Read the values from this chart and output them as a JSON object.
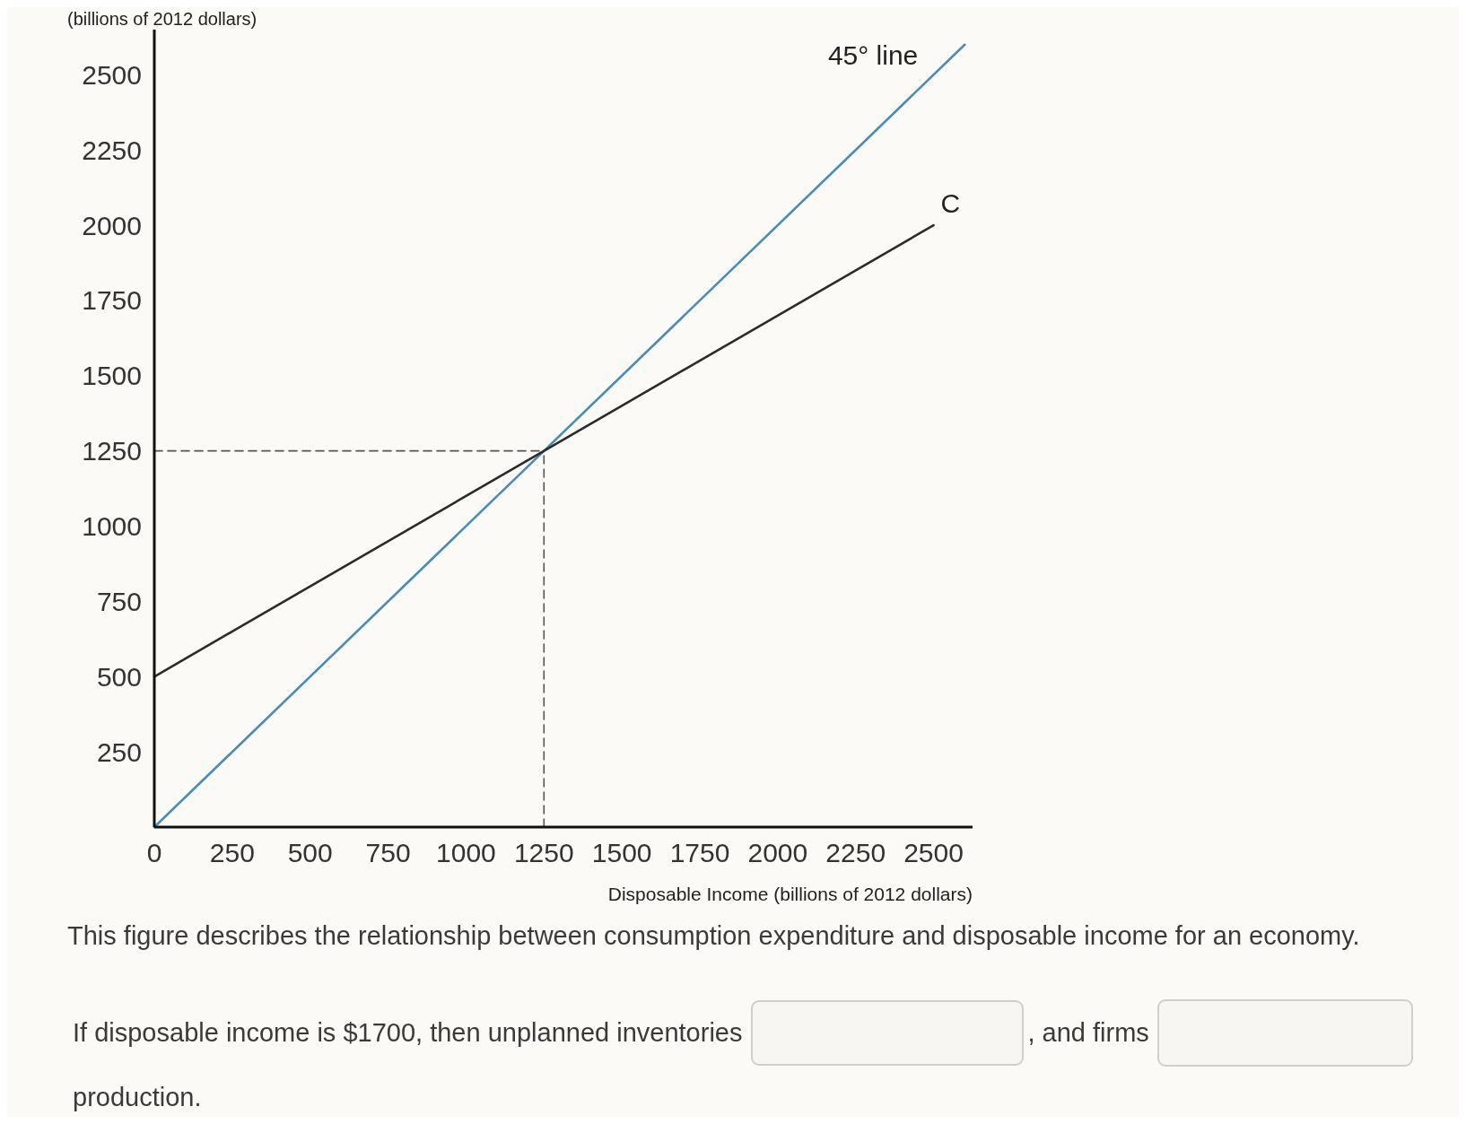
{
  "chart_data": {
    "type": "line",
    "ylabel": "(billions of 2012 dollars)",
    "xlabel": "Disposable Income (billions of 2012 dollars)",
    "annotations": [
      "This figure describes the relationship between consumption expenditure and disposable income for an economy.",
      "If disposable income is $1700, then unplanned inventories",
      ", and firms",
      "production."
    ],
    "xlim": [
      0,
      2625
    ],
    "ylim": [
      0,
      2650
    ],
    "xticks": [
      0,
      250,
      500,
      750,
      1000,
      1250,
      1500,
      1750,
      2000,
      2250,
      2500
    ],
    "yticks": [
      250,
      500,
      750,
      1000,
      1250,
      1500,
      1750,
      2000,
      2250,
      2500
    ],
    "series": [
      {
        "name": "45° line",
        "color": "#4a8db5",
        "x": [
          0,
          2600
        ],
        "values": [
          0,
          2600
        ]
      },
      {
        "name": "C",
        "color": "#2b2b2b",
        "x": [
          0,
          2500
        ],
        "values": [
          500,
          2000
        ]
      },
      {
        "color": "#555555",
        "line_style": "dashed",
        "x": [
          0,
          1250
        ],
        "values": [
          1250,
          1250
        ]
      },
      {
        "color": "#555555",
        "line_style": "dashed",
        "x": [
          1250,
          1250
        ],
        "values": [
          0,
          1250
        ]
      }
    ]
  }
}
